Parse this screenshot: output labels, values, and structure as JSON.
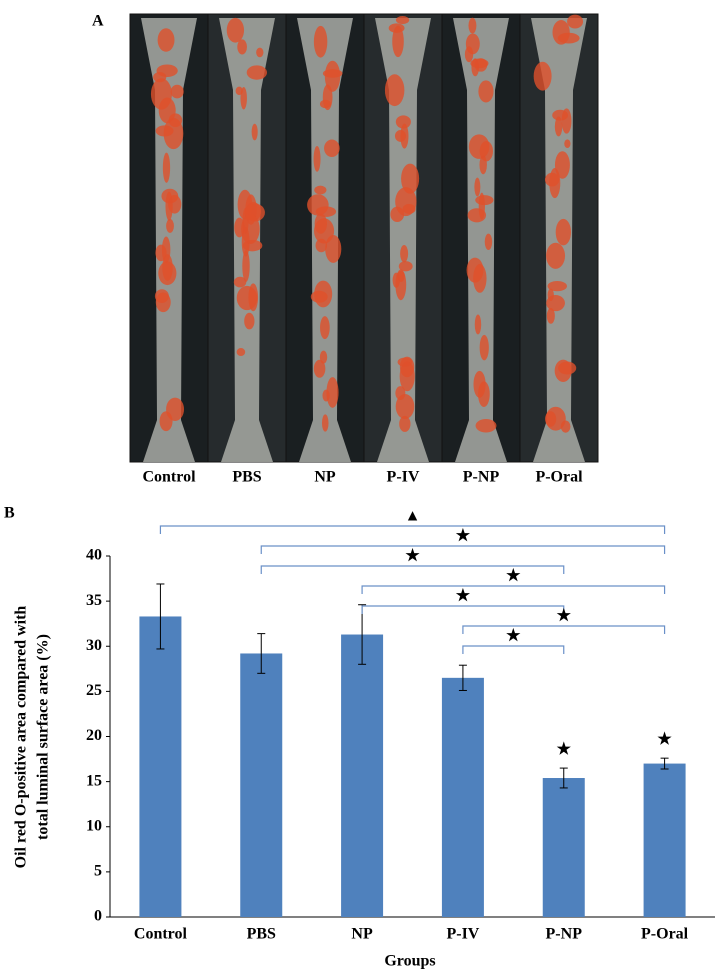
{
  "panel_a": {
    "label": "A",
    "lanes": [
      "Control",
      "PBS",
      "NP",
      "P-IV",
      "P-NP",
      "P-Oral"
    ]
  },
  "chart_data": {
    "type": "bar",
    "panel_label": "B",
    "x_label": "Groups",
    "y_label": [
      "Oil red O-positive area compared with",
      "total luminal surface area (%)"
    ],
    "categories": [
      "Control",
      "PBS",
      "NP",
      "P-IV",
      "P-NP",
      "P-Oral"
    ],
    "values": [
      33.3,
      29.2,
      31.3,
      26.5,
      15.4,
      17.0
    ],
    "errors": [
      3.6,
      2.2,
      3.3,
      1.4,
      1.1,
      0.6
    ],
    "color": "#4f81bd",
    "ylim": [
      0,
      40
    ],
    "yticks": [
      0,
      5,
      10,
      15,
      20,
      25,
      30,
      35,
      40
    ],
    "annotations": [
      {
        "category": "P-NP",
        "label": "★"
      },
      {
        "category": "P-Oral",
        "label": "★"
      }
    ],
    "comparisons": [
      {
        "from": "Control",
        "to": "P-Oral",
        "label": "▲"
      },
      {
        "from": "PBS",
        "to": "P-Oral",
        "label": "★"
      },
      {
        "from": "PBS",
        "to": "P-NP",
        "label": "★"
      },
      {
        "from": "NP",
        "to": "P-Oral",
        "label": "★"
      },
      {
        "from": "NP",
        "to": "P-NP",
        "label": "★"
      },
      {
        "from": "P-IV",
        "to": "P-Oral",
        "label": "★"
      },
      {
        "from": "P-IV",
        "to": "P-NP",
        "label": "★"
      }
    ]
  }
}
